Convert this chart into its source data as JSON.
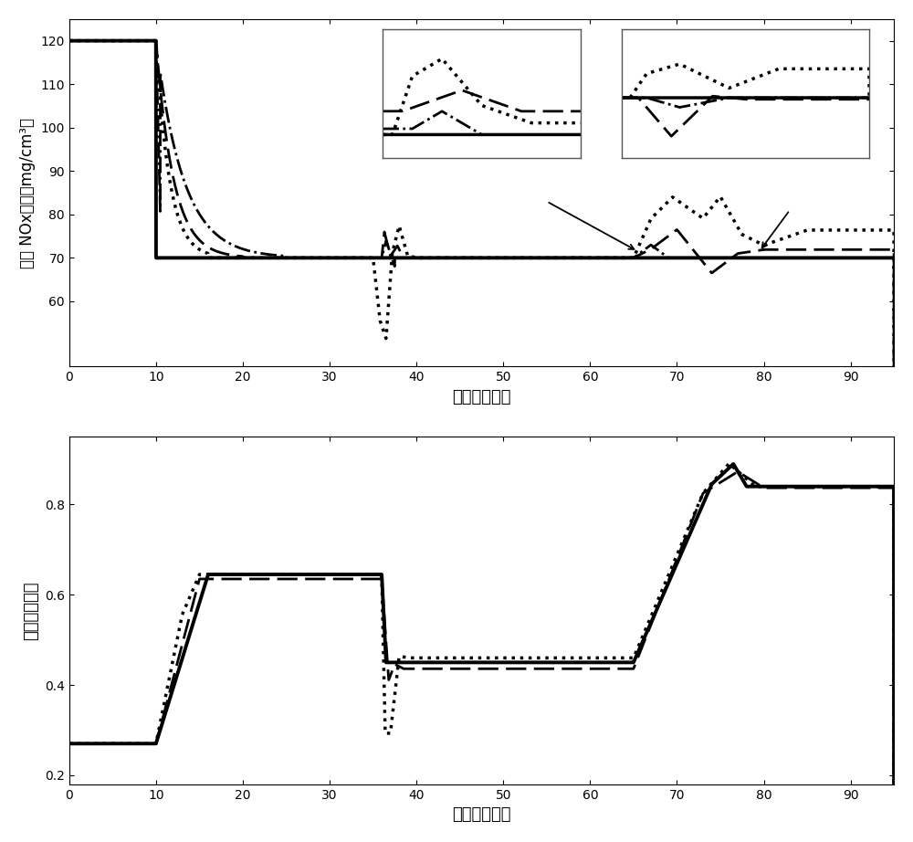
{
  "xlabel": "时间（分钟）",
  "ylabel1": "出口 NOx浓度（mg/cm³）",
  "ylabel2": "喷氨阀门开度",
  "xlim": [
    0,
    95
  ],
  "ylim1": [
    45,
    125
  ],
  "ylim2": [
    0.18,
    0.95
  ],
  "yticks1": [
    60,
    70,
    80,
    90,
    100,
    110,
    120
  ],
  "yticks2": [
    0.2,
    0.4,
    0.6,
    0.8
  ],
  "xticks": [
    0,
    10,
    20,
    30,
    40,
    50,
    60,
    70,
    80,
    90
  ],
  "bg_color": "#ffffff"
}
